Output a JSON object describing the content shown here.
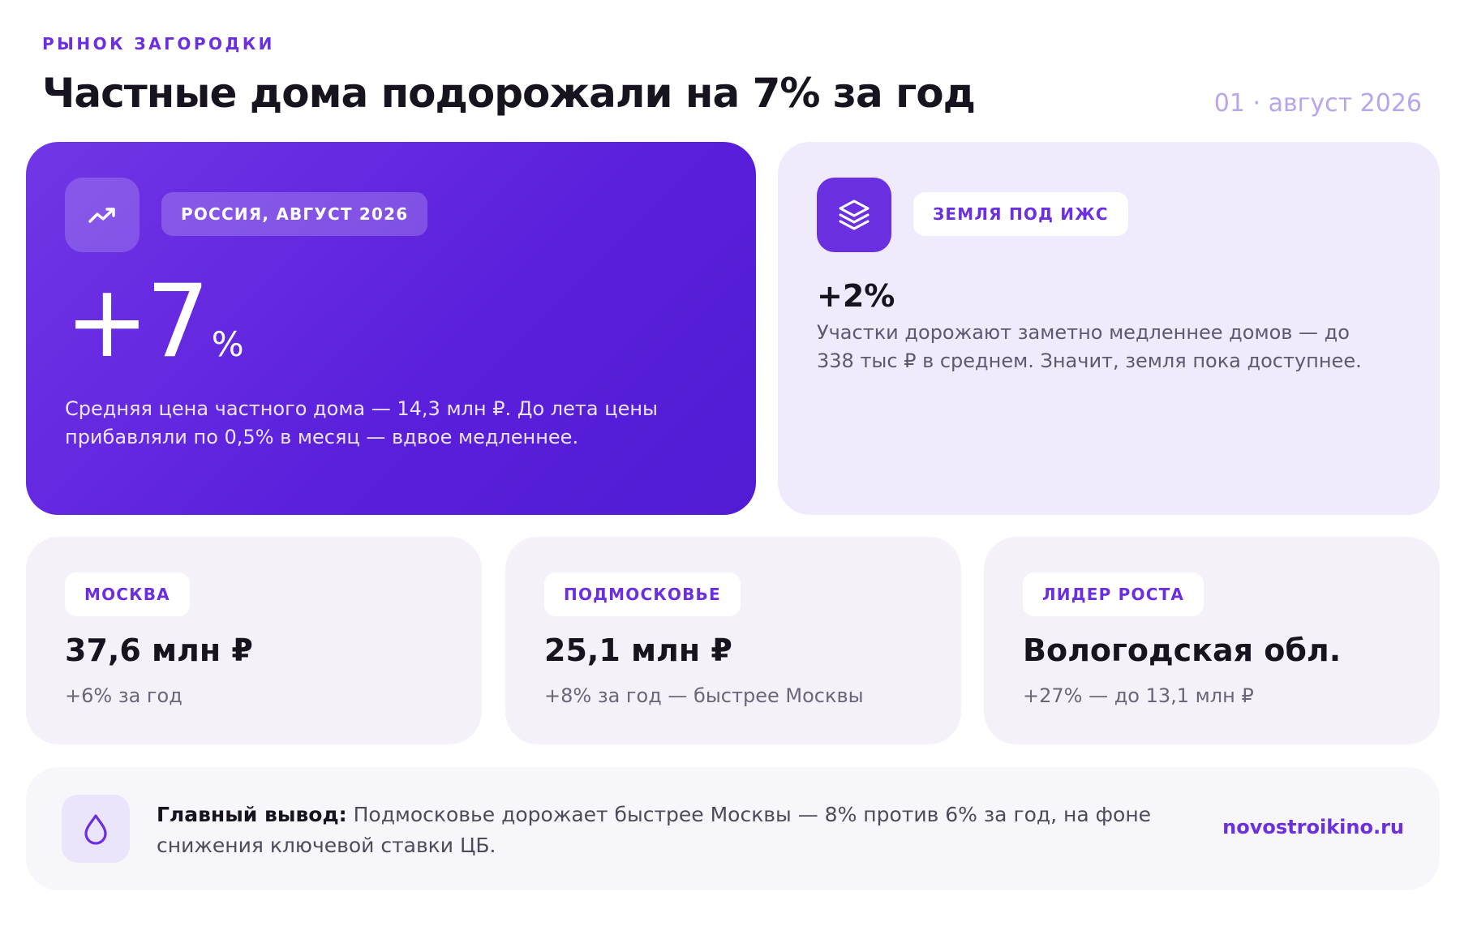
{
  "header": {
    "kicker": "РЫНОК ЗАГОРОДКИ",
    "title": "Частные дома подорожали на 7% за год",
    "date": "01 · август 2026"
  },
  "hero": {
    "icon": "trend-up-icon",
    "badge": "РОССИЯ, АВГУСТ 2026",
    "value": "+7",
    "unit": "%",
    "description": "Средняя цена частного дома — 14,3 млн ₽. До лета цены прибавляли по 0,5% в месяц — вдвое медленнее."
  },
  "land": {
    "icon": "layers-icon",
    "badge": "ЗЕМЛЯ ПОД ИЖС",
    "value": "+2%",
    "description": "Участки дорожают заметно медленнее домов — до 338 тыс ₽ в среднем. Значит, земля пока доступнее."
  },
  "stats": [
    {
      "badge": "МОСКВА",
      "value": "37,6 млн ₽",
      "sub": "+6% за год"
    },
    {
      "badge": "ПОДМОСКОВЬЕ",
      "value": "25,1 млн ₽",
      "sub": "+8% за год — быстрее Москвы"
    },
    {
      "badge": "ЛИДЕР РОСТА",
      "value": "Вологодская обл.",
      "sub": "+27% — до 13,1 млн ₽"
    }
  ],
  "summary": {
    "icon": "drop-icon",
    "lead": "Главный вывод:",
    "text": " Подмосковье дорожает быстрее Москвы — 8% против 6% за год, на фоне снижения ключевой ставки ЦБ.",
    "link": "novostroikino.ru"
  },
  "colors": {
    "accent": "#6b2fe0",
    "hero_gradient_start": "#7136e6",
    "hero_gradient_end": "#521bd4",
    "land_bg": "#efebfd",
    "stat_bg": "#f4f2f8",
    "date": "#b9a4ee"
  }
}
